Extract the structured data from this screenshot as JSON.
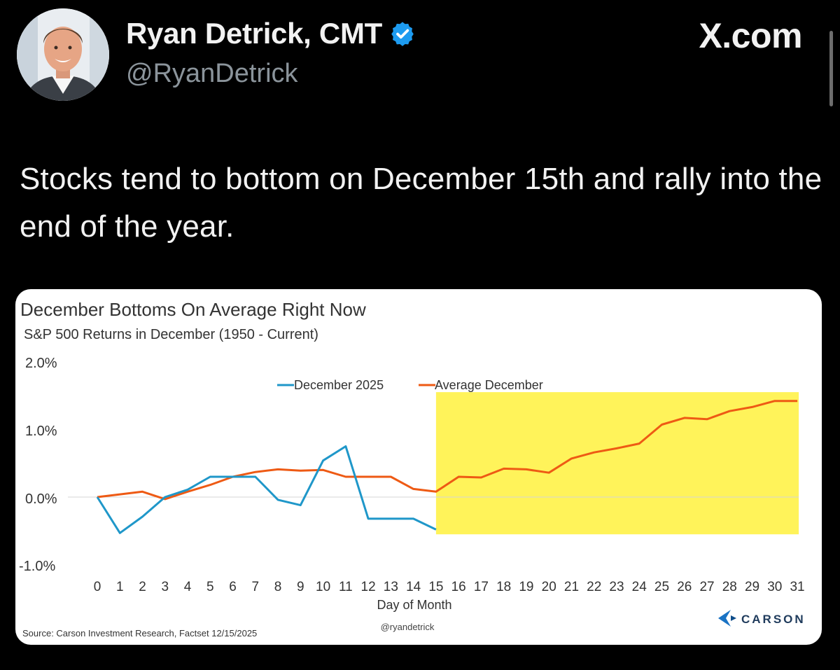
{
  "tweet": {
    "author_name": "Ryan Detrick, CMT",
    "author_handle": "@RyanDetrick",
    "site": "X.com",
    "text": "Stocks tend to bottom on December 15th and rally into the end of the year."
  },
  "icons": {
    "verified": "verified-badge-icon",
    "scroll": "scrollbar"
  },
  "colors": {
    "background": "#000000",
    "verified_blue": "#1d9bf0",
    "dec2025_line": "#1f97c9",
    "avg_line": "#ee5a14",
    "highlight": "#fff35a",
    "carson_blue": "#1a73c4"
  },
  "chart_data": {
    "type": "line",
    "title": "December Bottoms On Average Right Now",
    "subtitle": "S&P 500 Returns in December (1950 - Current)",
    "xlabel": "Day of Month",
    "ylabel": "",
    "x": [
      0,
      1,
      2,
      3,
      4,
      5,
      6,
      7,
      8,
      9,
      10,
      11,
      12,
      13,
      14,
      15,
      16,
      17,
      18,
      19,
      20,
      21,
      22,
      23,
      24,
      25,
      26,
      27,
      28,
      29,
      30,
      31
    ],
    "ylim": [
      -1.0,
      2.0
    ],
    "y_ticks": [
      2.0,
      1.0,
      0.0,
      -1.0
    ],
    "y_tick_labels": [
      "2.0%",
      "1.0%",
      "0.0%",
      "-1.0%"
    ],
    "series": [
      {
        "name": "December 2025",
        "color": "#1f97c9",
        "x": [
          0,
          1,
          2,
          3,
          4,
          5,
          6,
          7,
          8,
          9,
          10,
          11,
          12,
          13,
          14,
          15
        ],
        "values": [
          0.0,
          -0.53,
          -0.29,
          0.0,
          0.11,
          0.3,
          0.3,
          0.3,
          -0.04,
          -0.12,
          0.54,
          0.75,
          -0.32,
          -0.32,
          -0.32,
          -0.48
        ]
      },
      {
        "name": "Average December",
        "color": "#ee5a14",
        "x": [
          0,
          1,
          2,
          3,
          4,
          5,
          6,
          7,
          8,
          9,
          10,
          11,
          12,
          13,
          14,
          15,
          16,
          17,
          18,
          19,
          20,
          21,
          22,
          23,
          24,
          25,
          26,
          27,
          28,
          29,
          30,
          31
        ],
        "values": [
          0.0,
          0.04,
          0.08,
          -0.03,
          0.08,
          0.18,
          0.3,
          0.37,
          0.41,
          0.39,
          0.4,
          0.3,
          0.3,
          0.3,
          0.12,
          0.08,
          0.3,
          0.29,
          0.42,
          0.41,
          0.36,
          0.57,
          0.66,
          0.72,
          0.79,
          1.07,
          1.17,
          1.15,
          1.27,
          1.33,
          1.42,
          1.42
        ]
      }
    ],
    "highlight": {
      "x_start": 15,
      "x_end": 31,
      "y_start": -0.55,
      "y_end": 1.55
    },
    "legend": [
      "December 2025",
      "Average December"
    ],
    "legend_position": "top",
    "source": "Source: Carson Investment Research, Factset 12/15/2025",
    "credit": "@ryandetrick",
    "brand": "CARSON"
  }
}
